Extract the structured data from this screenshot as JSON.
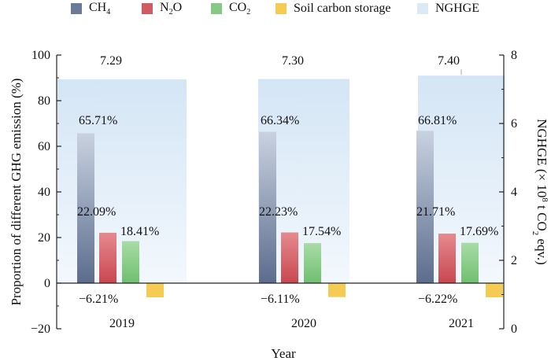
{
  "chart_data": {
    "type": "bar",
    "categories": [
      "2019",
      "2020",
      "2021"
    ],
    "series": [
      {
        "name": "CH4",
        "label_main": "CH",
        "label_sub": "4",
        "color": "#6b7a98",
        "values": [
          65.71,
          66.34,
          66.81
        ],
        "labels": [
          "65.71%",
          "66.34%",
          "66.81%"
        ]
      },
      {
        "name": "N2O",
        "label_main": "N",
        "label_sub": "2",
        "label_tail": "O",
        "color": "#cf5b63",
        "values": [
          22.09,
          22.23,
          21.71
        ],
        "labels": [
          "22.09%",
          "22.23%",
          "21.71%"
        ]
      },
      {
        "name": "CO2",
        "label_main": "CO",
        "label_sub": "2",
        "color": "#86c986",
        "values": [
          18.41,
          17.54,
          17.69
        ],
        "labels": [
          "18.41%",
          "17.54%",
          "17.69%"
        ]
      },
      {
        "name": "Soil carbon storage",
        "label_main": "Soil carbon storage",
        "color": "#f6cb54",
        "values": [
          -6.21,
          -6.11,
          -6.22
        ],
        "labels": [
          "−6.21%",
          "−6.11%",
          "−6.22%"
        ]
      }
    ],
    "secondary_series": {
      "name": "NGHGE",
      "label_main": "NGHGE",
      "color": "#dce9f6",
      "values": [
        7.29,
        7.3,
        7.4
      ],
      "labels": [
        "7.29",
        "7.30",
        "7.40"
      ]
    },
    "xlabel": "Year",
    "ylabel": "Proportion of different GHG emission (%)",
    "ylim": [
      -20,
      100
    ],
    "yticks": [
      -20,
      0,
      20,
      40,
      60,
      80,
      100
    ],
    "ytick_labels": [
      "−20",
      "0",
      "20",
      "40",
      "60",
      "80",
      "100"
    ],
    "y2label_parts": {
      "pre": "NGHGE (× 10",
      "sup": "8",
      "mid": " t CO",
      "sub": "2",
      "post": " eqv.)"
    },
    "y2lim": [
      0,
      8
    ],
    "y2ticks": [
      0,
      2,
      4,
      6,
      8
    ],
    "y2tick_labels": [
      "0",
      "2",
      "4",
      "6",
      "8"
    ]
  }
}
